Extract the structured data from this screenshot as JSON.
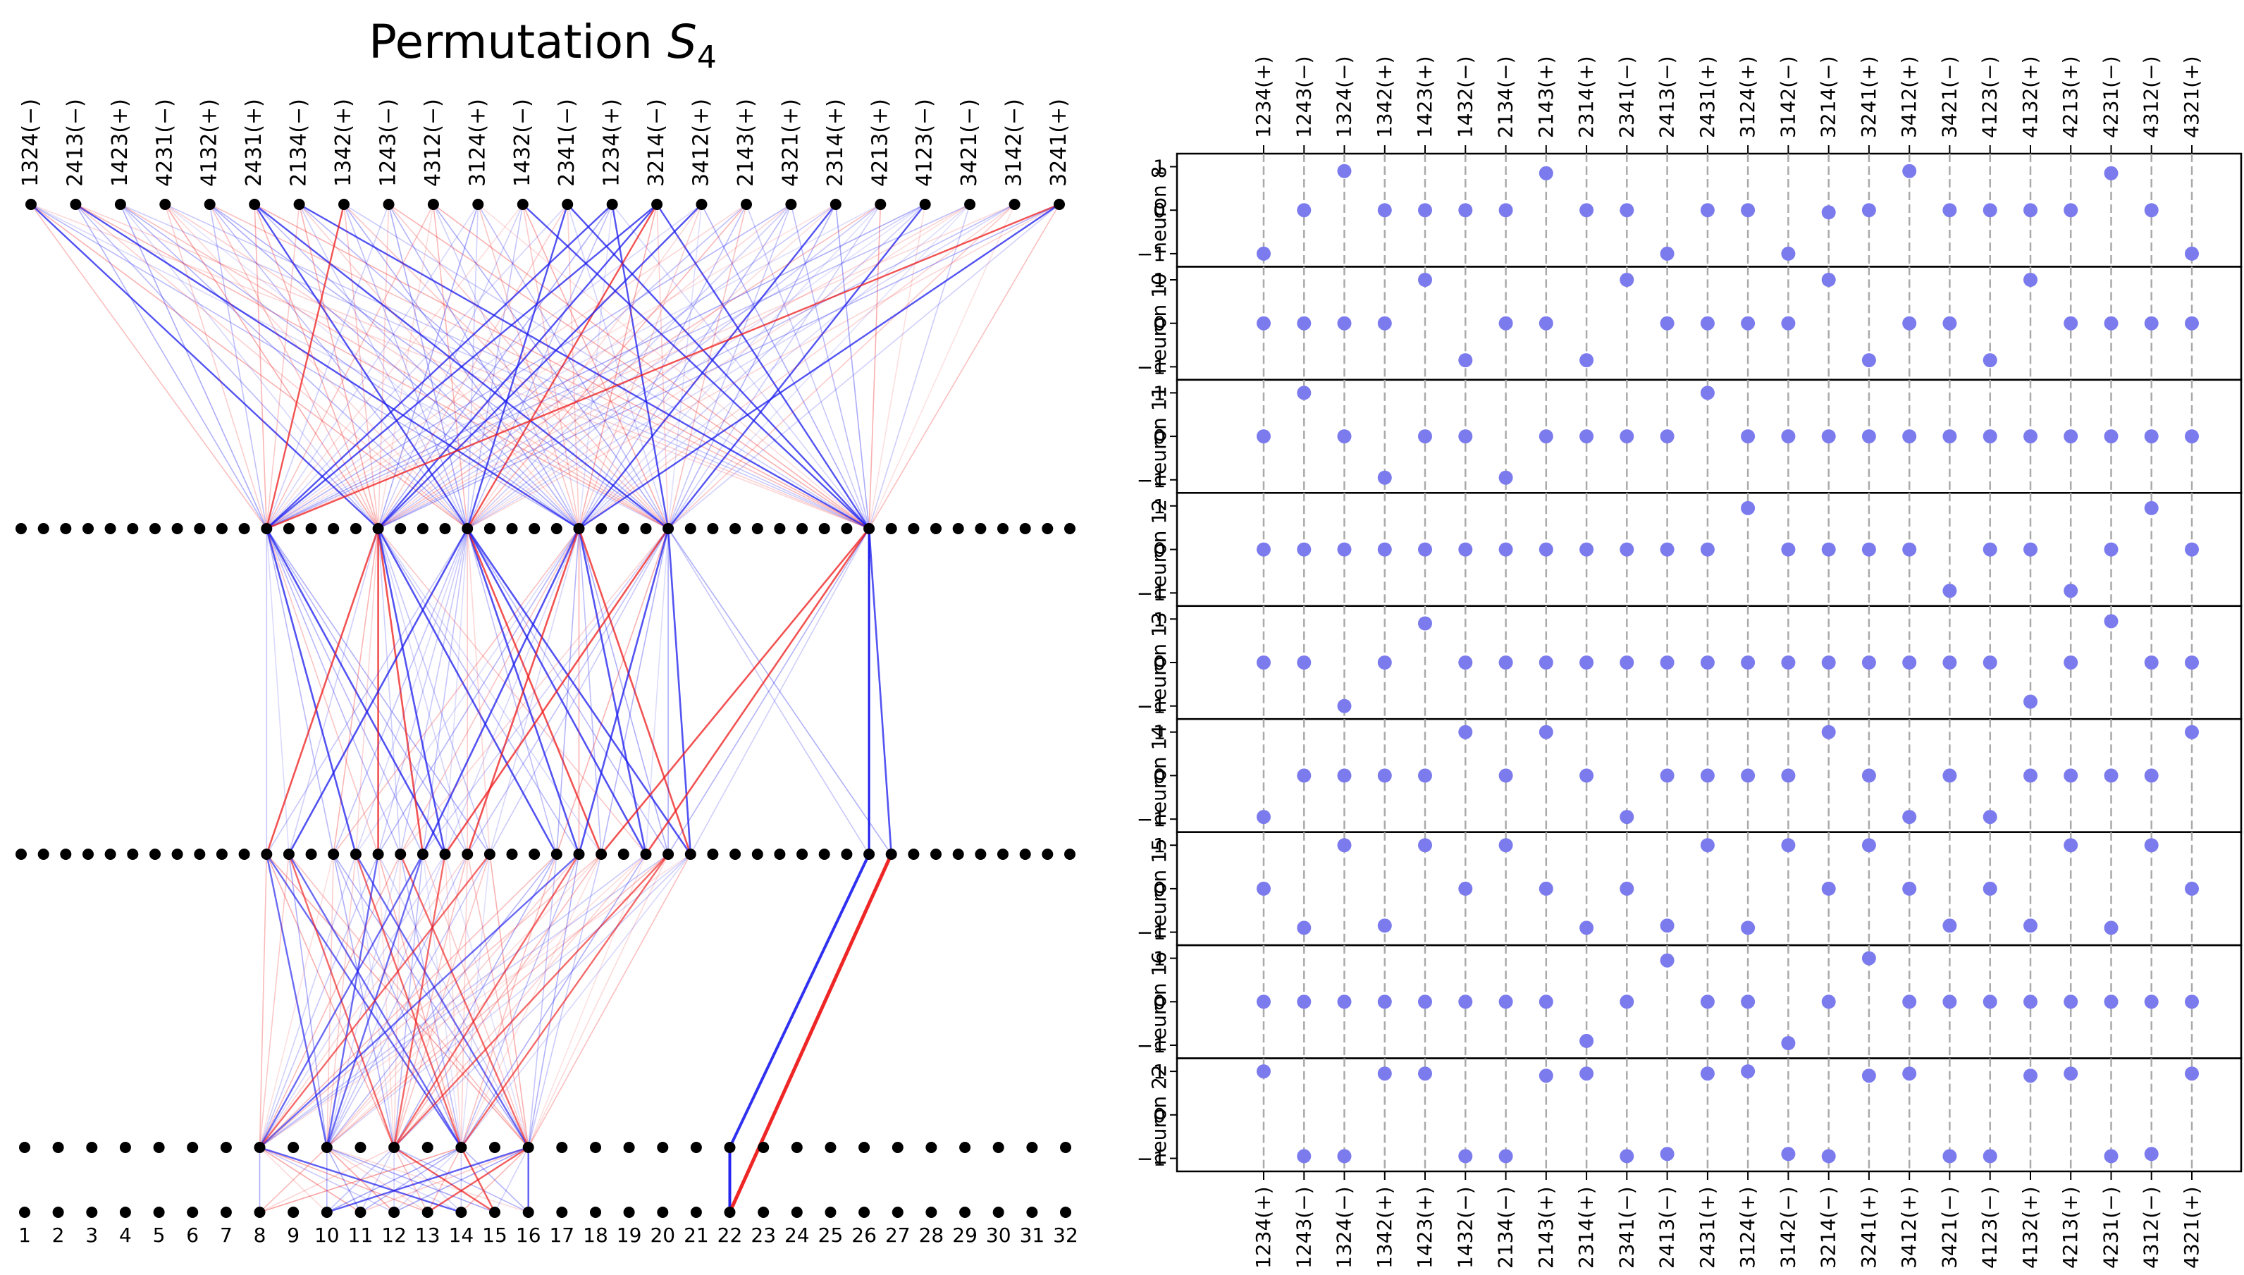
{
  "colors": {
    "positive_edge": "#1a1aee",
    "negative_edge": "#ee1a1a",
    "node": "#000000",
    "point": "#7b7bee",
    "guide": "#aaaaaa"
  },
  "chart_data": [
    {
      "type": "network",
      "title": "Permutation S₄",
      "title_plain": "Permutation ",
      "title_math": "S",
      "title_sub": "4",
      "input_labels": [
        "1324(−)",
        "2413(−)",
        "1423(+)",
        "4231(−)",
        "4132(+)",
        "2431(+)",
        "2134(−)",
        "1342(+)",
        "1243(−)",
        "4312(−)",
        "3124(+)",
        "1432(−)",
        "2341(−)",
        "1234(+)",
        "3214(−)",
        "3412(+)",
        "2143(+)",
        "4321(+)",
        "2314(+)",
        "4213(+)",
        "4123(−)",
        "3421(−)",
        "3142(−)",
        "3241(+)"
      ],
      "layer_sizes": [
        24,
        48,
        48,
        32,
        32
      ],
      "output_labels": [
        "1",
        "2",
        "3",
        "4",
        "5",
        "6",
        "7",
        "8",
        "9",
        "10",
        "11",
        "12",
        "13",
        "14",
        "15",
        "16",
        "17",
        "18",
        "19",
        "20",
        "21",
        "22",
        "23",
        "24",
        "25",
        "26",
        "27",
        "28",
        "29",
        "30",
        "31",
        "32"
      ],
      "hub_nodes_layer1": [
        11,
        16,
        20,
        25,
        29,
        38
      ],
      "hub_nodes_layer2": [
        11,
        12,
        14,
        15,
        16,
        17,
        18,
        19,
        20,
        21,
        24,
        25,
        26,
        28,
        29,
        30,
        38,
        39
      ],
      "hub_nodes_layer3": [
        7,
        9,
        11,
        13,
        15,
        21
      ],
      "hub_nodes_layer4": [
        7,
        9,
        10,
        11,
        12,
        13,
        14,
        15,
        21
      ]
    },
    {
      "type": "scatter-grid",
      "categories": [
        "1234(+)",
        "1243(−)",
        "1324(−)",
        "1342(+)",
        "1423(+)",
        "1432(−)",
        "2134(−)",
        "2143(+)",
        "2314(+)",
        "2341(−)",
        "2413(−)",
        "2431(+)",
        "3124(+)",
        "3142(−)",
        "3214(−)",
        "3241(+)",
        "3412(+)",
        "3421(−)",
        "4123(−)",
        "4132(+)",
        "4213(+)",
        "4231(−)",
        "4312(−)",
        "4321(+)"
      ],
      "yticks": [
        1,
        0,
        -1
      ],
      "ytick_labels": [
        "1",
        "0",
        "−1"
      ],
      "ylim": [
        -1.3,
        1.3
      ],
      "series": [
        {
          "name": "neuron 8",
          "values": [
            -1,
            0,
            0.9,
            0,
            0,
            0,
            0,
            0.85,
            0,
            0,
            -1,
            0,
            0,
            -1,
            -0.05,
            0,
            0.9,
            0,
            0,
            0,
            0,
            0.85,
            0,
            -1
          ]
        },
        {
          "name": "neuron 10",
          "values": [
            0,
            0,
            0,
            0,
            1,
            -0.85,
            0,
            0,
            -0.85,
            1,
            0,
            0,
            0,
            0,
            1,
            -0.85,
            0,
            0,
            -0.85,
            1,
            0,
            0,
            0,
            0
          ]
        },
        {
          "name": "neuron 11",
          "values": [
            0,
            1,
            0,
            -0.95,
            0,
            0,
            -0.95,
            0,
            0,
            0,
            0,
            1,
            0,
            0,
            0,
            0,
            0,
            0,
            0,
            0,
            0,
            0,
            0,
            0
          ]
        },
        {
          "name": "neuron 12",
          "values": [
            0,
            0,
            0,
            0,
            0,
            0,
            0,
            0,
            0,
            0,
            0,
            0,
            0.95,
            0,
            0,
            0,
            0,
            -0.95,
            0,
            0,
            -0.95,
            0,
            0.95,
            0
          ]
        },
        {
          "name": "neuron 13",
          "values": [
            0,
            0,
            -1,
            0,
            0.9,
            0,
            0,
            0,
            0,
            0,
            0,
            0,
            0,
            0,
            0,
            0,
            0,
            0,
            0,
            -0.9,
            0,
            0.95,
            0,
            0
          ]
        },
        {
          "name": "neuron 14",
          "values": [
            -0.95,
            0,
            0,
            0,
            0,
            1,
            0,
            1,
            0,
            -0.95,
            0,
            0,
            0,
            0,
            1,
            0,
            -0.95,
            0,
            -0.95,
            0,
            0,
            0,
            0,
            1
          ]
        },
        {
          "name": "neuron 15",
          "values": [
            0,
            -0.9,
            1,
            -0.85,
            1,
            0,
            1,
            0,
            -0.9,
            0,
            -0.85,
            1,
            -0.9,
            1,
            0,
            1,
            0,
            -0.85,
            0,
            -0.85,
            1,
            -0.9,
            1,
            0
          ]
        },
        {
          "name": "neuron 16",
          "values": [
            0,
            0,
            0,
            0,
            0,
            0,
            0,
            0,
            -0.9,
            0,
            0.95,
            0,
            0,
            -0.95,
            0,
            1,
            0,
            0,
            0,
            0,
            0,
            0,
            0,
            0
          ]
        },
        {
          "name": "neuron 22",
          "values": [
            1,
            -0.95,
            -0.95,
            0.95,
            0.95,
            -0.95,
            -0.95,
            0.9,
            0.95,
            -0.95,
            -0.9,
            0.95,
            1,
            -0.9,
            -0.95,
            0.9,
            0.95,
            -0.95,
            -0.95,
            0.9,
            0.95,
            -0.95,
            -0.9,
            0.95
          ]
        }
      ]
    }
  ]
}
